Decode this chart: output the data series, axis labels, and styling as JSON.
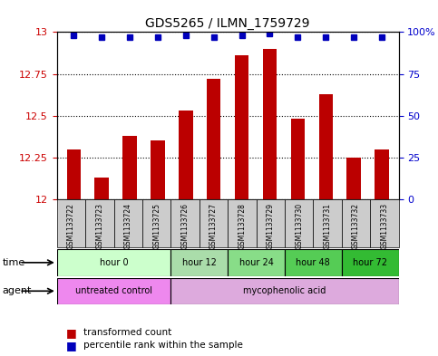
{
  "title": "GDS5265 / ILMN_1759729",
  "samples": [
    "GSM1133722",
    "GSM1133723",
    "GSM1133724",
    "GSM1133725",
    "GSM1133726",
    "GSM1133727",
    "GSM1133728",
    "GSM1133729",
    "GSM1133730",
    "GSM1133731",
    "GSM1133732",
    "GSM1133733"
  ],
  "bar_values": [
    12.3,
    12.13,
    12.38,
    12.35,
    12.53,
    12.72,
    12.86,
    12.9,
    12.48,
    12.63,
    12.25,
    12.3
  ],
  "percentile_values": [
    98,
    97,
    97,
    97,
    98,
    97,
    98,
    99,
    97,
    97,
    97,
    97
  ],
  "bar_color": "#bb0000",
  "percentile_color": "#0000bb",
  "ylim_left": [
    12.0,
    13.0
  ],
  "ylim_right": [
    0,
    100
  ],
  "yticks_left": [
    12.0,
    12.25,
    12.5,
    12.75,
    13.0
  ],
  "yticks_right": [
    0,
    25,
    50,
    75,
    100
  ],
  "ytick_labels_left": [
    "12",
    "12.25",
    "12.5",
    "12.75",
    "13"
  ],
  "ytick_labels_right": [
    "0",
    "25",
    "50",
    "75",
    "100%"
  ],
  "time_groups": [
    {
      "label": "hour 0",
      "start": 0,
      "end": 3,
      "color": "#ccffcc"
    },
    {
      "label": "hour 12",
      "start": 4,
      "end": 5,
      "color": "#aaddaa"
    },
    {
      "label": "hour 24",
      "start": 6,
      "end": 7,
      "color": "#88dd88"
    },
    {
      "label": "hour 48",
      "start": 8,
      "end": 9,
      "color": "#55cc55"
    },
    {
      "label": "hour 72",
      "start": 10,
      "end": 11,
      "color": "#33bb33"
    }
  ],
  "agent_groups": [
    {
      "label": "untreated control",
      "start": 0,
      "end": 3,
      "color": "#ee88ee"
    },
    {
      "label": "mycophenolic acid",
      "start": 4,
      "end": 11,
      "color": "#ddaadd"
    }
  ],
  "legend_bar_label": "transformed count",
  "legend_pct_label": "percentile rank within the sample",
  "time_label": "time",
  "agent_label": "agent",
  "bar_width": 0.5,
  "sample_box_color": "#cccccc",
  "tick_color_left": "#cc0000",
  "tick_color_right": "#0000cc"
}
